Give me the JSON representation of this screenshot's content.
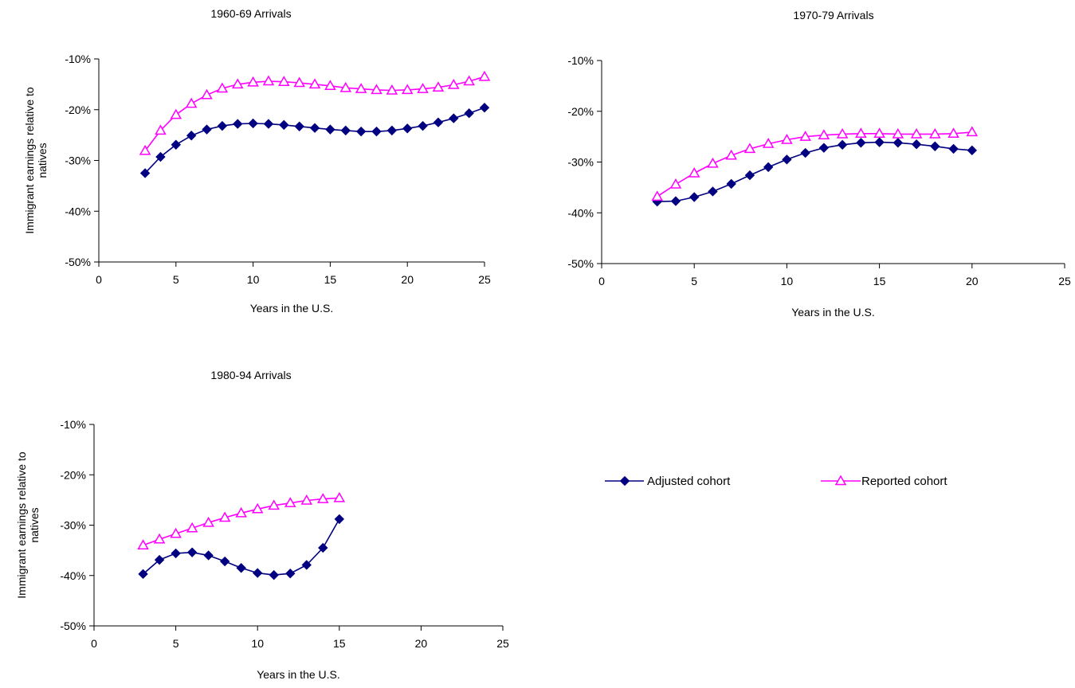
{
  "colors": {
    "adjusted": "#000080",
    "reported": "#FF00FF",
    "axis": "#000000"
  },
  "legend": {
    "adjusted_label": "Adjusted cohort",
    "reported_label": "Reported cohort",
    "adjusted_marker": "diamond-filled",
    "reported_marker": "triangle-open"
  },
  "chart_data": [
    {
      "type": "line",
      "title": "1960-69 Arrivals",
      "xlabel": "Years in the U.S.",
      "ylabel": "Immigrant earnings relative to natives",
      "xlim": [
        0,
        25
      ],
      "ylim": [
        -0.5,
        -0.1
      ],
      "xticks": [
        "0",
        "5",
        "10",
        "15",
        "20",
        "25"
      ],
      "yticks": [
        "-10%",
        "-20%",
        "-30%",
        "-40%",
        "-50%"
      ],
      "grid": false,
      "series": [
        {
          "name": "Adjusted cohort",
          "x": [
            3,
            4,
            5,
            6,
            7,
            8,
            9,
            10,
            11,
            12,
            13,
            14,
            15,
            16,
            17,
            18,
            19,
            20,
            21,
            22,
            23,
            24,
            25
          ],
          "y": [
            -0.325,
            -0.293,
            -0.269,
            -0.251,
            -0.239,
            -0.232,
            -0.228,
            -0.227,
            -0.228,
            -0.23,
            -0.233,
            -0.236,
            -0.239,
            -0.241,
            -0.243,
            -0.243,
            -0.241,
            -0.237,
            -0.232,
            -0.225,
            -0.217,
            -0.207,
            -0.196
          ]
        },
        {
          "name": "Reported cohort",
          "x": [
            3,
            4,
            5,
            6,
            7,
            8,
            9,
            10,
            11,
            12,
            13,
            14,
            15,
            16,
            17,
            18,
            19,
            20,
            21,
            22,
            23,
            24,
            25
          ],
          "y": [
            -0.281,
            -0.241,
            -0.21,
            -0.188,
            -0.171,
            -0.158,
            -0.15,
            -0.146,
            -0.144,
            -0.145,
            -0.147,
            -0.15,
            -0.153,
            -0.157,
            -0.159,
            -0.161,
            -0.162,
            -0.161,
            -0.159,
            -0.156,
            -0.151,
            -0.144,
            -0.135
          ]
        }
      ]
    },
    {
      "type": "line",
      "title": "1970-79 Arrivals",
      "xlabel": "Years in the U.S.",
      "ylabel": "",
      "xlim": [
        0,
        25
      ],
      "ylim": [
        -0.5,
        -0.1
      ],
      "xticks": [
        "0",
        "5",
        "10",
        "15",
        "20",
        "25"
      ],
      "yticks": [
        "-10%",
        "-20%",
        "-30%",
        "-40%",
        "-50%"
      ],
      "grid": false,
      "series": [
        {
          "name": "Adjusted cohort",
          "x": [
            3,
            4,
            5,
            6,
            7,
            8,
            9,
            10,
            11,
            12,
            13,
            14,
            15,
            16,
            17,
            18,
            19,
            20
          ],
          "y": [
            -0.378,
            -0.377,
            -0.369,
            -0.358,
            -0.343,
            -0.326,
            -0.31,
            -0.295,
            -0.282,
            -0.272,
            -0.266,
            -0.262,
            -0.261,
            -0.262,
            -0.265,
            -0.269,
            -0.274,
            -0.277
          ]
        },
        {
          "name": "Reported cohort",
          "x": [
            3,
            4,
            5,
            6,
            7,
            8,
            9,
            10,
            11,
            12,
            13,
            14,
            15,
            16,
            17,
            18,
            19,
            20
          ],
          "y": [
            -0.368,
            -0.344,
            -0.322,
            -0.303,
            -0.287,
            -0.274,
            -0.264,
            -0.256,
            -0.25,
            -0.247,
            -0.245,
            -0.244,
            -0.244,
            -0.245,
            -0.245,
            -0.245,
            -0.244,
            -0.241
          ]
        }
      ]
    },
    {
      "type": "line",
      "title": "1980-94 Arrivals",
      "xlabel": "Years in the U.S.",
      "ylabel": "Immigrant earnings relative to natives",
      "xlim": [
        0,
        25
      ],
      "ylim": [
        -0.5,
        -0.1
      ],
      "xticks": [
        "0",
        "5",
        "10",
        "15",
        "20",
        "25"
      ],
      "yticks": [
        "-10%",
        "-20%",
        "-30%",
        "-40%",
        "-50%"
      ],
      "grid": false,
      "series": [
        {
          "name": "Adjusted cohort",
          "x": [
            3,
            4,
            5,
            6,
            7,
            8,
            9,
            10,
            11,
            12,
            13,
            14,
            15
          ],
          "y": [
            -0.397,
            -0.369,
            -0.356,
            -0.354,
            -0.36,
            -0.372,
            -0.385,
            -0.395,
            -0.399,
            -0.396,
            -0.379,
            -0.345,
            -0.288
          ]
        },
        {
          "name": "Reported cohort",
          "x": [
            3,
            4,
            5,
            6,
            7,
            8,
            9,
            10,
            11,
            12,
            13,
            14,
            15
          ],
          "y": [
            -0.34,
            -0.328,
            -0.317,
            -0.306,
            -0.295,
            -0.285,
            -0.276,
            -0.268,
            -0.261,
            -0.256,
            -0.251,
            -0.248,
            -0.246
          ]
        }
      ]
    }
  ]
}
